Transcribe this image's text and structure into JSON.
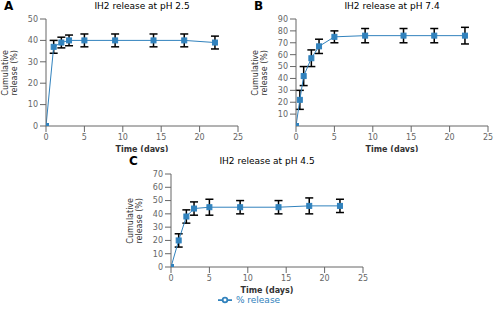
{
  "chart_data": [
    {
      "type": "line",
      "title": "IH2 release at pH 2.5",
      "annotations": [
        "A"
      ],
      "xlabel": "Time (days)",
      "ylabel": "Cumulative\nrelease (%)",
      "x": [
        0,
        1,
        2,
        3,
        5,
        9,
        14,
        18,
        22
      ],
      "series": [
        {
          "name": "% release",
          "values": [
            0,
            37,
            39,
            40,
            40,
            40,
            40,
            40,
            39
          ],
          "errors": [
            0,
            3,
            2.5,
            2.5,
            3,
            3,
            3,
            3,
            3
          ],
          "marker": "square"
        }
      ],
      "xlim": [
        0,
        25
      ],
      "xticks": [
        0,
        5,
        10,
        15,
        20,
        25
      ],
      "ylim": [
        0,
        50
      ],
      "yticks": [
        0,
        10,
        20,
        30,
        40,
        50
      ]
    },
    {
      "type": "line",
      "title": "IH2 release at pH 7.4",
      "annotations": [
        "B"
      ],
      "xlabel": "Time (days)",
      "ylabel": "Cumulative\nrelease (%)",
      "x": [
        0,
        0.5,
        1,
        2,
        3,
        5,
        9,
        14,
        18,
        22
      ],
      "series": [
        {
          "name": "% release",
          "values": [
            0,
            22,
            42,
            57,
            67,
            75,
            76,
            76,
            76,
            76
          ],
          "errors": [
            0,
            8,
            8,
            7,
            6,
            5,
            6,
            6,
            6,
            7
          ],
          "marker": "square"
        }
      ],
      "xlim": [
        0,
        25
      ],
      "xticks": [
        0,
        5,
        10,
        15,
        20,
        25
      ],
      "ylim": [
        0,
        90
      ],
      "yticks": [
        10,
        20,
        30,
        40,
        50,
        60,
        70,
        80,
        90
      ]
    },
    {
      "type": "line",
      "title": "IH2 release at pH 4.5",
      "annotations": [
        "C"
      ],
      "xlabel": "Time (days)",
      "ylabel": "Cumulative\nrelease (%)",
      "x": [
        0,
        1,
        2,
        3,
        5,
        9,
        14,
        18,
        22
      ],
      "series": [
        {
          "name": "% release",
          "values": [
            0,
            20,
            38,
            44,
            45,
            45,
            45,
            46,
            46
          ],
          "errors": [
            0,
            5,
            5,
            5,
            6,
            5,
            5,
            6,
            5
          ],
          "marker": "square"
        }
      ],
      "xlim": [
        0,
        25
      ],
      "xticks": [
        0,
        5,
        10,
        15,
        20,
        25
      ],
      "ylim": [
        0,
        70
      ],
      "yticks": [
        0,
        10,
        20,
        30,
        40,
        50,
        60,
        70
      ],
      "legend": "bottom"
    }
  ]
}
